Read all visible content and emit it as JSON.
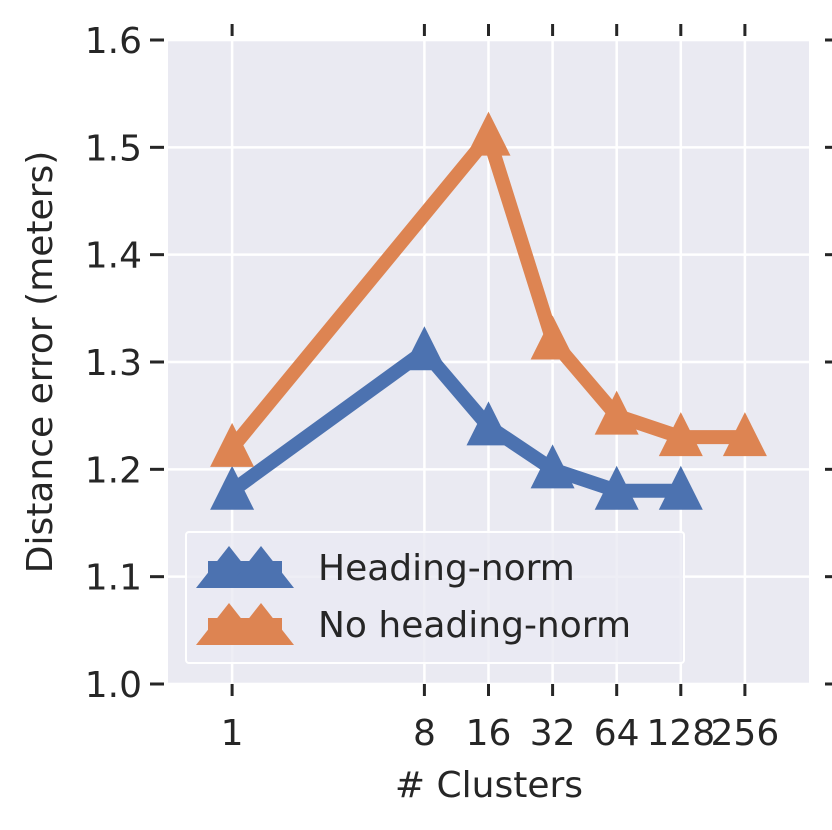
{
  "chart_data": {
    "type": "line",
    "title": "",
    "xlabel": "# Clusters",
    "ylabel": "Distance error (meters)",
    "x_scale": "log2",
    "x_ticks": [
      1,
      8,
      16,
      32,
      64,
      128,
      256
    ],
    "x_tick_labels": [
      "1",
      "8",
      "16",
      "32",
      "64",
      "128",
      "256"
    ],
    "xlim": [
      0.5,
      512
    ],
    "ylim": [
      1.0,
      1.6
    ],
    "y_ticks": [
      1.0,
      1.1,
      1.2,
      1.3,
      1.4,
      1.5,
      1.6
    ],
    "y_tick_labels": [
      "1.0",
      "1.1",
      "1.2",
      "1.3",
      "1.4",
      "1.5",
      "1.6"
    ],
    "grid": true,
    "legend_position": "lower-left",
    "series": [
      {
        "name": "Heading-norm",
        "color": "#4c72b0",
        "marker": "triangle-up",
        "x": [
          1,
          8,
          16,
          32,
          64,
          128
        ],
        "y": [
          1.18,
          1.31,
          1.24,
          1.2,
          1.18,
          1.18
        ]
      },
      {
        "name": "No heading-norm",
        "color": "#dd8452",
        "marker": "triangle-up",
        "x": [
          1,
          16,
          32,
          64,
          128,
          256
        ],
        "y": [
          1.22,
          1.51,
          1.32,
          1.25,
          1.23,
          1.23
        ]
      }
    ]
  }
}
